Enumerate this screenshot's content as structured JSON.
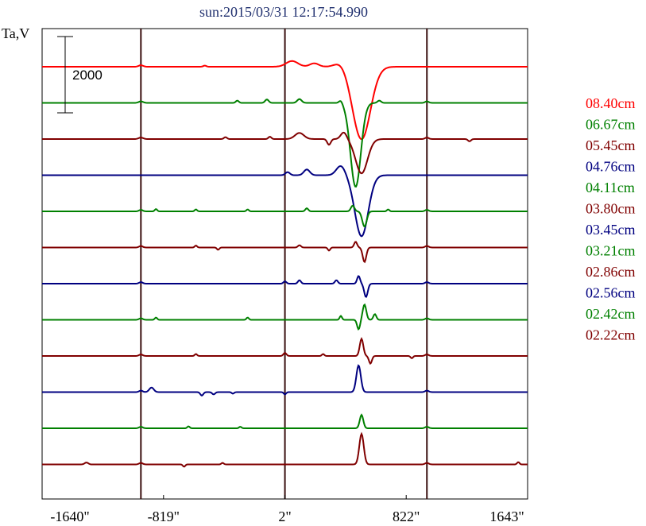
{
  "chart_data": {
    "type": "line",
    "title": "sun:2015/03/31 12:17:54.990",
    "ylabel": "Ta,V",
    "xlabel": "",
    "x_ticks": [
      "-1640\"",
      "-819\"",
      "2\"",
      "822\"",
      "1643\""
    ],
    "x_tick_values": [
      -1640,
      -819,
      2,
      822,
      1643
    ],
    "xlim": [
      -1640,
      1643
    ],
    "vertical_lines": [
      -972,
      2,
      962
    ],
    "scale_bar": {
      "label": "2000",
      "value": 2000
    },
    "grid": false,
    "legend_position": "right",
    "series": [
      {
        "name": "08.40cm",
        "color": "#ff0000",
        "baseline": 0,
        "features": [
          [
            -972,
            40,
            15
          ],
          [
            -540,
            30,
            10
          ],
          [
            50,
            150,
            40
          ],
          [
            200,
            90,
            30
          ],
          [
            380,
            120,
            40
          ],
          [
            520,
            -1900,
            60
          ]
        ]
      },
      {
        "name": "06.67cm",
        "color": "#008000",
        "baseline": 0,
        "features": [
          [
            -972,
            40,
            15
          ],
          [
            -320,
            60,
            10
          ],
          [
            -120,
            90,
            12
          ],
          [
            100,
            100,
            15
          ],
          [
            380,
            80,
            12
          ],
          [
            480,
            -2200,
            35
          ],
          [
            640,
            60,
            12
          ],
          [
            962,
            40,
            12
          ]
        ]
      },
      {
        "name": "05.45cm",
        "color": "#800000",
        "baseline": 0,
        "features": [
          [
            -972,
            40,
            15
          ],
          [
            -400,
            50,
            10
          ],
          [
            -100,
            60,
            10
          ],
          [
            100,
            160,
            30
          ],
          [
            300,
            -150,
            12
          ],
          [
            400,
            180,
            20
          ],
          [
            520,
            -900,
            40
          ],
          [
            962,
            40,
            12
          ],
          [
            1250,
            -60,
            10
          ]
        ]
      },
      {
        "name": "04.76cm",
        "color": "#000080",
        "baseline": 0,
        "features": [
          [
            20,
            80,
            15
          ],
          [
            150,
            150,
            20
          ],
          [
            380,
            250,
            30
          ],
          [
            520,
            -1600,
            45
          ]
        ]
      },
      {
        "name": "04.11cm",
        "color": "#008000",
        "baseline": 0,
        "features": [
          [
            -972,
            40,
            12
          ],
          [
            -870,
            60,
            8
          ],
          [
            -600,
            50,
            8
          ],
          [
            -250,
            50,
            8
          ],
          [
            150,
            80,
            10
          ],
          [
            460,
            150,
            12
          ],
          [
            540,
            -400,
            15
          ],
          [
            700,
            50,
            8
          ],
          [
            962,
            40,
            12
          ]
        ]
      },
      {
        "name": "03.80cm",
        "color": "#800000",
        "baseline": 0,
        "features": [
          [
            -972,
            40,
            12
          ],
          [
            -600,
            50,
            8
          ],
          [
            -450,
            -60,
            8
          ],
          [
            100,
            60,
            10
          ],
          [
            300,
            -80,
            8
          ],
          [
            480,
            150,
            10
          ],
          [
            540,
            -380,
            12
          ],
          [
            962,
            40,
            12
          ]
        ]
      },
      {
        "name": "03.45cm",
        "color": "#000080",
        "baseline": 0,
        "features": [
          [
            -972,
            40,
            12
          ],
          [
            2,
            60,
            10
          ],
          [
            100,
            90,
            10
          ],
          [
            350,
            90,
            10
          ],
          [
            500,
            200,
            10
          ],
          [
            550,
            -350,
            12
          ],
          [
            962,
            40,
            12
          ]
        ]
      },
      {
        "name": "03.21cm",
        "color": "#008000",
        "baseline": 0,
        "features": [
          [
            -972,
            40,
            12
          ],
          [
            -870,
            60,
            8
          ],
          [
            -250,
            60,
            8
          ],
          [
            380,
            100,
            8
          ],
          [
            500,
            -250,
            10
          ],
          [
            540,
            400,
            12
          ],
          [
            610,
            150,
            10
          ],
          [
            962,
            40,
            12
          ]
        ]
      },
      {
        "name": "02.86cm",
        "color": "#800000",
        "baseline": 0,
        "features": [
          [
            -972,
            40,
            12
          ],
          [
            -600,
            50,
            8
          ],
          [
            2,
            80,
            10
          ],
          [
            260,
            50,
            8
          ],
          [
            520,
            450,
            12
          ],
          [
            580,
            -200,
            10
          ],
          [
            860,
            -60,
            8
          ],
          [
            962,
            40,
            12
          ]
        ]
      },
      {
        "name": "02.56cm",
        "color": "#000080",
        "baseline": 0,
        "features": [
          [
            -972,
            40,
            12
          ],
          [
            -900,
            120,
            15
          ],
          [
            -560,
            -90,
            10
          ],
          [
            -480,
            -60,
            10
          ],
          [
            -350,
            -40,
            8
          ],
          [
            2,
            -60,
            8
          ],
          [
            500,
            700,
            15
          ],
          [
            962,
            40,
            12
          ]
        ]
      },
      {
        "name": "02.42cm",
        "color": "#008000",
        "baseline": 0,
        "features": [
          [
            -972,
            40,
            12
          ],
          [
            -650,
            50,
            8
          ],
          [
            -300,
            40,
            8
          ],
          [
            520,
            350,
            12
          ],
          [
            962,
            40,
            12
          ]
        ]
      },
      {
        "name": "02.22cm",
        "color": "#800000",
        "baseline": 0,
        "features": [
          [
            -1340,
            50,
            12
          ],
          [
            -972,
            40,
            12
          ],
          [
            -680,
            -60,
            8
          ],
          [
            -420,
            40,
            8
          ],
          [
            520,
            800,
            15
          ],
          [
            962,
            40,
            12
          ],
          [
            1580,
            60,
            8
          ]
        ]
      }
    ]
  }
}
